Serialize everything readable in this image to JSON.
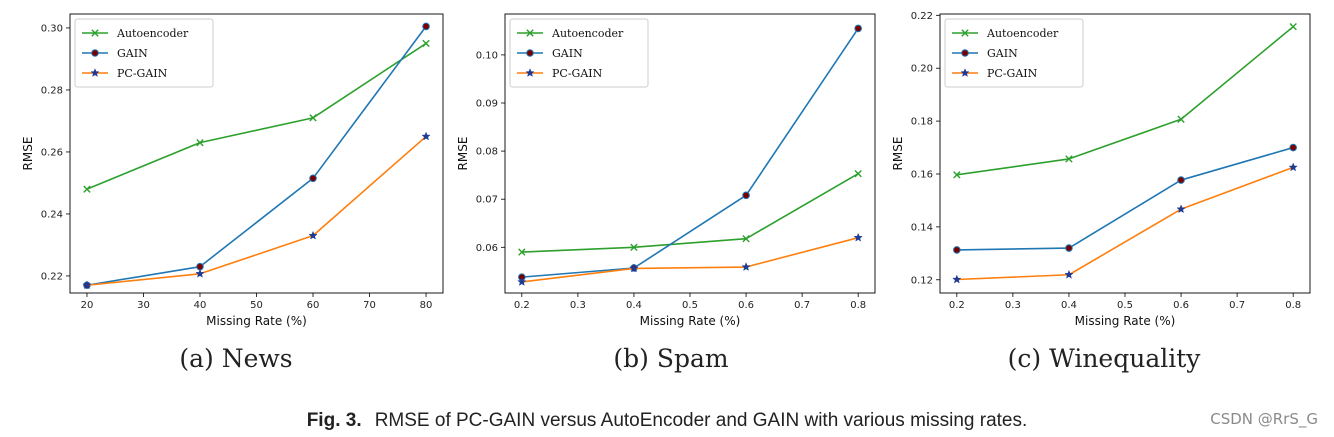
{
  "colors": {
    "Autoencoder": "#2ca02c",
    "GAIN": "#1f77b4",
    "PC-GAIN": "#ff7f0e",
    "gain_marker_fill": "#7a0000",
    "pcgain_marker_fill": "#1f3a93"
  },
  "chart_data": [
    {
      "type": "line",
      "caption": "(a) News",
      "xlabel": "Missing Rate (%)",
      "ylabel": "RMSE",
      "x": [
        20,
        40,
        60,
        80
      ],
      "xlim": [
        17,
        83
      ],
      "ylim": [
        0.2145,
        0.3045
      ],
      "xticks": [
        20,
        30,
        40,
        50,
        60,
        70,
        80
      ],
      "xtick_labels": [
        "20",
        "30",
        "40",
        "50",
        "60",
        "70",
        "80"
      ],
      "yticks": [
        0.22,
        0.24,
        0.26,
        0.28,
        0.3
      ],
      "ytick_labels": [
        "0.22",
        "0.24",
        "0.26",
        "0.28",
        "0.30"
      ],
      "legend": "top-left",
      "series": [
        {
          "name": "Autoencoder",
          "marker": "x",
          "values": [
            0.248,
            0.263,
            0.271,
            0.295
          ]
        },
        {
          "name": "GAIN",
          "marker": "o",
          "values": [
            0.217,
            0.223,
            0.2515,
            0.3005
          ]
        },
        {
          "name": "PC-GAIN",
          "marker": "*",
          "values": [
            0.217,
            0.2207,
            0.233,
            0.265
          ]
        }
      ]
    },
    {
      "type": "line",
      "caption": "(b) Spam",
      "xlabel": "Missing Rate (%)",
      "ylabel": "RMSE",
      "x": [
        0.2,
        0.4,
        0.6,
        0.8
      ],
      "xlim": [
        0.17,
        0.83
      ],
      "ylim": [
        0.0505,
        0.1085
      ],
      "xticks": [
        0.2,
        0.3,
        0.4,
        0.5,
        0.6,
        0.7,
        0.8
      ],
      "xtick_labels": [
        "0.2",
        "0.3",
        "0.4",
        "0.5",
        "0.6",
        "0.7",
        "0.8"
      ],
      "yticks": [
        0.06,
        0.07,
        0.08,
        0.09,
        0.1
      ],
      "ytick_labels": [
        "0.06",
        "0.07",
        "0.08",
        "0.09",
        "0.10"
      ],
      "legend": "top-left",
      "series": [
        {
          "name": "Autoencoder",
          "marker": "x",
          "values": [
            0.059,
            0.06,
            0.0618,
            0.0753
          ]
        },
        {
          "name": "GAIN",
          "marker": "o",
          "values": [
            0.0538,
            0.0557,
            0.0708,
            0.1055
          ]
        },
        {
          "name": "PC-GAIN",
          "marker": "*",
          "values": [
            0.0528,
            0.0556,
            0.0559,
            0.062
          ]
        }
      ]
    },
    {
      "type": "line",
      "caption": "(c) Winequality",
      "xlabel": "Missing Rate (%)",
      "ylabel": "RMSE",
      "x": [
        0.2,
        0.4,
        0.6,
        0.8
      ],
      "xlim": [
        0.17,
        0.83
      ],
      "ylim": [
        0.115,
        0.2205
      ],
      "xticks": [
        0.2,
        0.3,
        0.4,
        0.5,
        0.6,
        0.7,
        0.8
      ],
      "xtick_labels": [
        "0.2",
        "0.3",
        "0.4",
        "0.5",
        "0.6",
        "0.7",
        "0.8"
      ],
      "yticks": [
        0.12,
        0.14,
        0.16,
        0.18,
        0.2,
        0.22
      ],
      "ytick_labels": [
        "0.12",
        "0.14",
        "0.16",
        "0.18",
        "0.20",
        "0.22"
      ],
      "legend": "top-left",
      "series": [
        {
          "name": "Autoencoder",
          "marker": "x",
          "values": [
            0.1597,
            0.1657,
            0.1807,
            0.2157
          ]
        },
        {
          "name": "GAIN",
          "marker": "o",
          "values": [
            0.1313,
            0.132,
            0.1577,
            0.17
          ]
        },
        {
          "name": "PC-GAIN",
          "marker": "*",
          "values": [
            0.1201,
            0.1219,
            0.1467,
            0.1625
          ]
        }
      ]
    }
  ],
  "caption": {
    "label": "Fig. 3.",
    "text": "RMSE of PC-GAIN versus AutoEncoder and GAIN with various missing rates."
  },
  "watermark": "CSDN @RrS_G"
}
